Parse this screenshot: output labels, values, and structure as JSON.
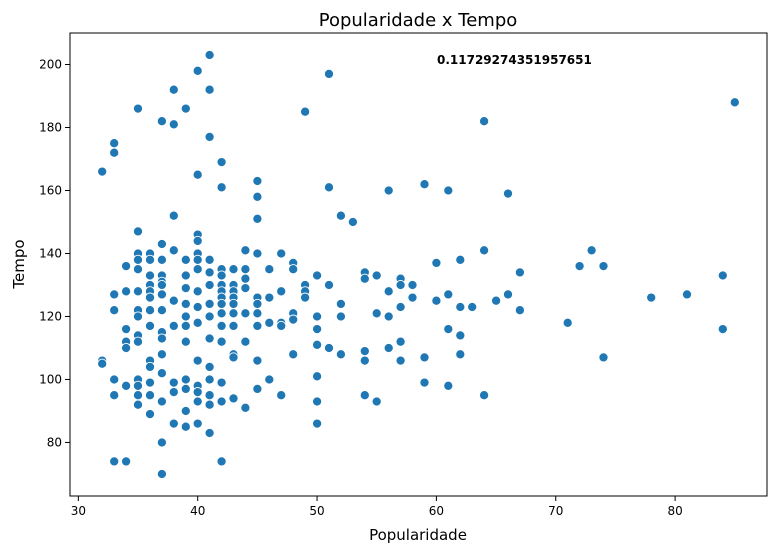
{
  "chart_data": {
    "type": "scatter",
    "title": "Popularidade x Tempo",
    "xlabel": "Popularidade",
    "ylabel": "Tempo",
    "annotation": "0.11729274351957651",
    "xlim": [
      29.3,
      87.7
    ],
    "ylim": [
      63,
      210
    ],
    "xticks": [
      30,
      40,
      50,
      60,
      70,
      80
    ],
    "yticks": [
      80,
      100,
      120,
      140,
      160,
      180,
      200
    ],
    "grid": false,
    "legend": "none",
    "color": "#1f77b4",
    "points": [
      [
        32,
        166
      ],
      [
        32,
        106
      ],
      [
        32,
        105
      ],
      [
        33,
        175
      ],
      [
        33,
        172
      ],
      [
        33,
        127
      ],
      [
        33,
        122
      ],
      [
        33,
        100
      ],
      [
        33,
        95
      ],
      [
        33,
        74
      ],
      [
        34,
        136
      ],
      [
        34,
        128
      ],
      [
        34,
        116
      ],
      [
        34,
        112
      ],
      [
        34,
        110
      ],
      [
        34,
        98
      ],
      [
        34,
        74
      ],
      [
        35,
        186
      ],
      [
        35,
        147
      ],
      [
        35,
        140
      ],
      [
        35,
        138
      ],
      [
        35,
        135
      ],
      [
        35,
        128
      ],
      [
        35,
        122
      ],
      [
        35,
        120
      ],
      [
        35,
        114
      ],
      [
        35,
        112
      ],
      [
        35,
        100
      ],
      [
        35,
        98
      ],
      [
        35,
        95
      ],
      [
        35,
        92
      ],
      [
        36,
        140
      ],
      [
        36,
        138
      ],
      [
        36,
        133
      ],
      [
        36,
        130
      ],
      [
        36,
        128
      ],
      [
        36,
        126
      ],
      [
        36,
        122
      ],
      [
        36,
        117
      ],
      [
        36,
        106
      ],
      [
        36,
        104
      ],
      [
        36,
        99
      ],
      [
        36,
        95
      ],
      [
        36,
        89
      ],
      [
        37,
        182
      ],
      [
        37,
        143
      ],
      [
        37,
        138
      ],
      [
        37,
        133
      ],
      [
        37,
        131
      ],
      [
        37,
        130
      ],
      [
        37,
        127
      ],
      [
        37,
        122
      ],
      [
        37,
        115
      ],
      [
        37,
        113
      ],
      [
        37,
        108
      ],
      [
        37,
        102
      ],
      [
        37,
        93
      ],
      [
        37,
        80
      ],
      [
        37,
        70
      ],
      [
        38,
        192
      ],
      [
        38,
        181
      ],
      [
        38,
        152
      ],
      [
        38,
        141
      ],
      [
        38,
        125
      ],
      [
        38,
        117
      ],
      [
        38,
        99
      ],
      [
        38,
        96
      ],
      [
        38,
        86
      ],
      [
        39,
        186
      ],
      [
        39,
        138
      ],
      [
        39,
        133
      ],
      [
        39,
        129
      ],
      [
        39,
        124
      ],
      [
        39,
        120
      ],
      [
        39,
        117
      ],
      [
        39,
        112
      ],
      [
        39,
        100
      ],
      [
        39,
        97
      ],
      [
        39,
        90
      ],
      [
        39,
        85
      ],
      [
        40,
        198
      ],
      [
        40,
        165
      ],
      [
        40,
        146
      ],
      [
        40,
        144
      ],
      [
        40,
        140
      ],
      [
        40,
        138
      ],
      [
        40,
        135
      ],
      [
        40,
        128
      ],
      [
        40,
        123
      ],
      [
        40,
        118
      ],
      [
        40,
        106
      ],
      [
        40,
        98
      ],
      [
        40,
        96
      ],
      [
        40,
        93
      ],
      [
        40,
        86
      ],
      [
        41,
        203
      ],
      [
        41,
        192
      ],
      [
        41,
        177
      ],
      [
        41,
        138
      ],
      [
        41,
        134
      ],
      [
        41,
        130
      ],
      [
        41,
        124
      ],
      [
        41,
        120
      ],
      [
        41,
        113
      ],
      [
        41,
        104
      ],
      [
        41,
        100
      ],
      [
        41,
        95
      ],
      [
        41,
        92
      ],
      [
        41,
        83
      ],
      [
        42,
        169
      ],
      [
        42,
        161
      ],
      [
        42,
        135
      ],
      [
        42,
        133
      ],
      [
        42,
        130
      ],
      [
        42,
        128
      ],
      [
        42,
        126
      ],
      [
        42,
        124
      ],
      [
        42,
        121
      ],
      [
        42,
        117
      ],
      [
        42,
        112
      ],
      [
        42,
        99
      ],
      [
        42,
        93
      ],
      [
        42,
        74
      ],
      [
        43,
        135
      ],
      [
        43,
        130
      ],
      [
        43,
        128
      ],
      [
        43,
        126
      ],
      [
        43,
        124
      ],
      [
        43,
        121
      ],
      [
        43,
        117
      ],
      [
        43,
        108
      ],
      [
        43,
        107
      ],
      [
        43,
        94
      ],
      [
        44,
        141
      ],
      [
        44,
        135
      ],
      [
        44,
        132
      ],
      [
        44,
        129
      ],
      [
        44,
        121
      ],
      [
        44,
        112
      ],
      [
        44,
        91
      ],
      [
        45,
        163
      ],
      [
        45,
        158
      ],
      [
        45,
        151
      ],
      [
        45,
        140
      ],
      [
        45,
        126
      ],
      [
        45,
        124
      ],
      [
        45,
        121
      ],
      [
        45,
        117
      ],
      [
        45,
        106
      ],
      [
        45,
        97
      ],
      [
        46,
        135
      ],
      [
        46,
        126
      ],
      [
        46,
        118
      ],
      [
        46,
        100
      ],
      [
        47,
        140
      ],
      [
        47,
        128
      ],
      [
        47,
        118
      ],
      [
        47,
        117
      ],
      [
        47,
        95
      ],
      [
        48,
        137
      ],
      [
        48,
        135
      ],
      [
        48,
        121
      ],
      [
        48,
        119
      ],
      [
        48,
        108
      ],
      [
        49,
        185
      ],
      [
        49,
        130
      ],
      [
        49,
        128
      ],
      [
        49,
        126
      ],
      [
        50,
        133
      ],
      [
        50,
        120
      ],
      [
        50,
        116
      ],
      [
        50,
        111
      ],
      [
        50,
        101
      ],
      [
        50,
        93
      ],
      [
        50,
        86
      ],
      [
        51,
        197
      ],
      [
        51,
        161
      ],
      [
        51,
        130
      ],
      [
        51,
        110
      ],
      [
        52,
        152
      ],
      [
        52,
        124
      ],
      [
        52,
        120
      ],
      [
        52,
        108
      ],
      [
        53,
        150
      ],
      [
        54,
        134
      ],
      [
        54,
        132
      ],
      [
        54,
        109
      ],
      [
        54,
        106
      ],
      [
        54,
        95
      ],
      [
        55,
        133
      ],
      [
        55,
        121
      ],
      [
        55,
        93
      ],
      [
        56,
        160
      ],
      [
        56,
        128
      ],
      [
        56,
        120
      ],
      [
        56,
        110
      ],
      [
        57,
        132
      ],
      [
        57,
        130
      ],
      [
        57,
        123
      ],
      [
        57,
        112
      ],
      [
        57,
        106
      ],
      [
        58,
        130
      ],
      [
        58,
        126
      ],
      [
        59,
        162
      ],
      [
        59,
        107
      ],
      [
        59,
        99
      ],
      [
        60,
        137
      ],
      [
        60,
        125
      ],
      [
        61,
        160
      ],
      [
        61,
        127
      ],
      [
        61,
        116
      ],
      [
        61,
        98
      ],
      [
        62,
        138
      ],
      [
        62,
        123
      ],
      [
        62,
        114
      ],
      [
        62,
        108
      ],
      [
        63,
        123
      ],
      [
        64,
        182
      ],
      [
        64,
        141
      ],
      [
        64,
        95
      ],
      [
        65,
        125
      ],
      [
        66,
        159
      ],
      [
        66,
        127
      ],
      [
        67,
        134
      ],
      [
        67,
        122
      ],
      [
        71,
        118
      ],
      [
        72,
        136
      ],
      [
        73,
        141
      ],
      [
        74,
        136
      ],
      [
        74,
        107
      ],
      [
        78,
        126
      ],
      [
        81,
        127
      ],
      [
        84,
        133
      ],
      [
        84,
        116
      ],
      [
        85,
        188
      ]
    ]
  }
}
